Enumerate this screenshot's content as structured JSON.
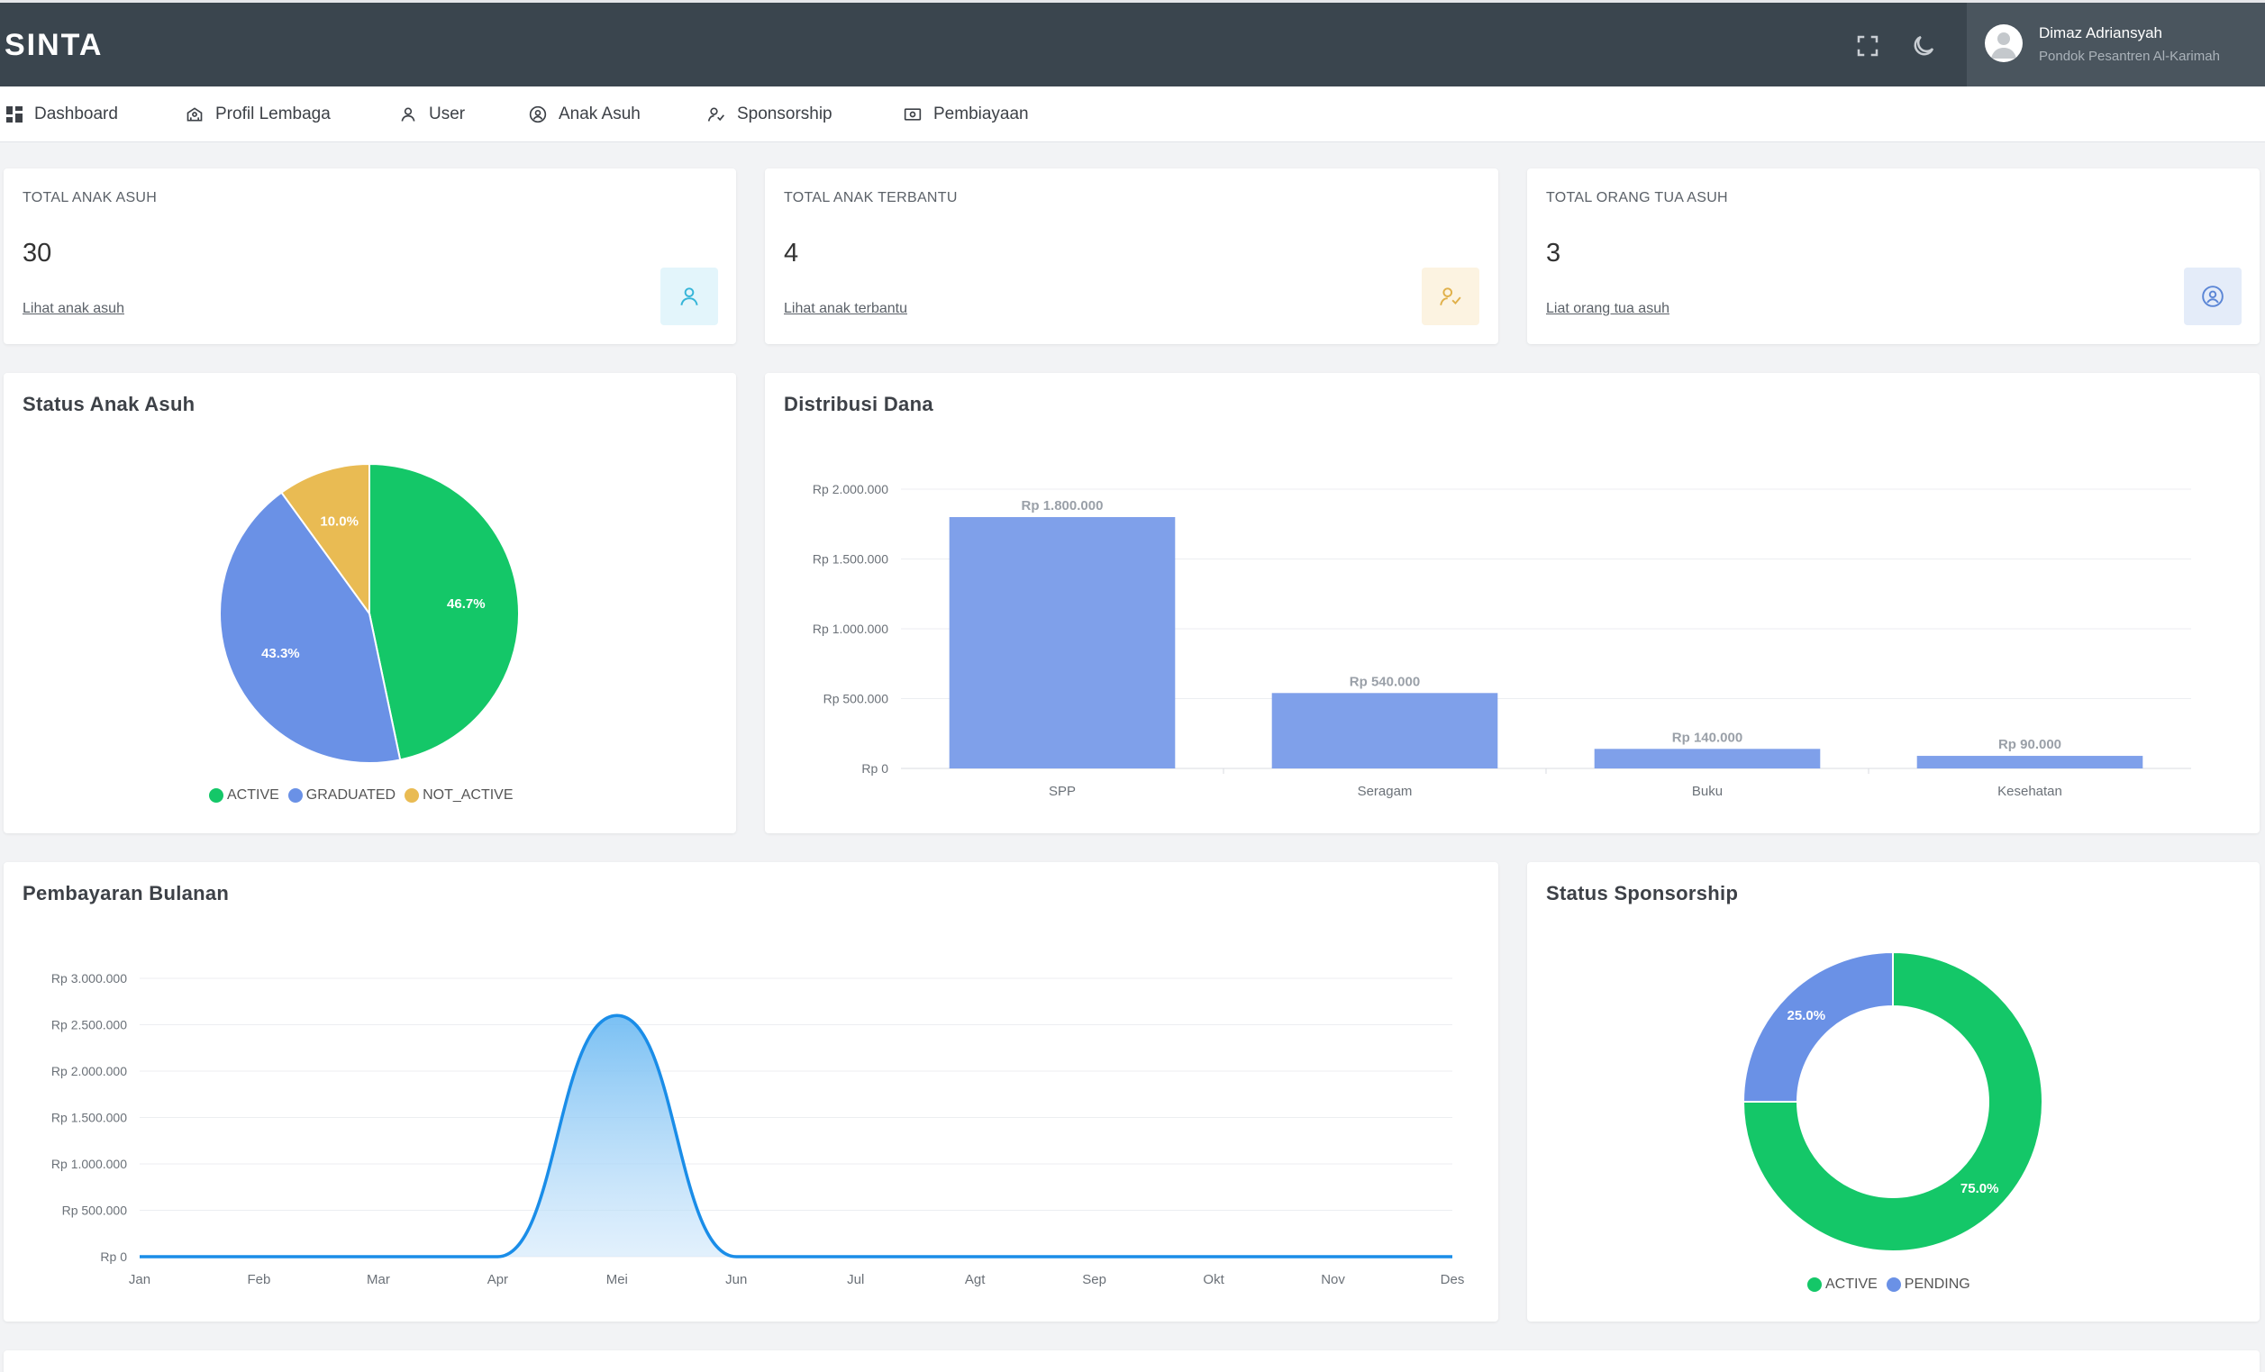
{
  "app": {
    "brand": "SINTA"
  },
  "topbar": {
    "fullscreen_icon": "fullscreen-icon",
    "theme_icon": "moon-icon"
  },
  "user": {
    "name": "Dimaz Adriansyah",
    "organization": "Pondok Pesantren Al-Karimah"
  },
  "nav": {
    "items": [
      {
        "label": "Dashboard",
        "icon": "dashboard-icon"
      },
      {
        "label": "Profil Lembaga",
        "icon": "building-icon"
      },
      {
        "label": "User",
        "icon": "user-icon"
      },
      {
        "label": "Anak Asuh",
        "icon": "user-circle-icon"
      },
      {
        "label": "Sponsorship",
        "icon": "user-check-icon"
      },
      {
        "label": "Pembiayaan",
        "icon": "money-icon"
      }
    ]
  },
  "stats": [
    {
      "label": "TOTAL ANAK ASUH",
      "value": "30",
      "link": "Lihat anak asuh",
      "icon": "user-icon",
      "color": "#36b5d8",
      "bg": "#e3f5fb"
    },
    {
      "label": "TOTAL ANAK TERBANTU",
      "value": "4",
      "link": "Lihat anak terbantu",
      "icon": "user-check-icon",
      "color": "#e0b04a",
      "bg": "#fcf3e1"
    },
    {
      "label": "TOTAL ORANG TUA ASUH",
      "value": "3",
      "link": "Liat orang tua asuh",
      "icon": "user-circle-icon",
      "color": "#5b86d6",
      "bg": "#e4ecf9"
    }
  ],
  "status_anak": {
    "title": "Status Anak Asuh",
    "chart_data": {
      "type": "pie",
      "slices": [
        {
          "name": "ACTIVE",
          "value": 46.7,
          "label": "46.7%",
          "color": "#14c768"
        },
        {
          "name": "GRADUATED",
          "value": 43.3,
          "label": "43.3%",
          "color": "#6a91e6"
        },
        {
          "name": "NOT_ACTIVE",
          "value": 10.0,
          "label": "10.0%",
          "color": "#e9bb53"
        }
      ]
    }
  },
  "distribusi": {
    "title": "Distribusi Dana",
    "chart_data": {
      "type": "bar",
      "categories": [
        "SPP",
        "Seragam",
        "Buku",
        "Kesehatan"
      ],
      "values": [
        1800000,
        540000,
        140000,
        90000
      ],
      "data_labels": [
        "Rp 1.800.000",
        "Rp 540.000",
        "Rp 140.000",
        "Rp 90.000"
      ],
      "ylim": [
        0,
        2000000
      ],
      "yticks": [
        0,
        500000,
        1000000,
        1500000,
        2000000
      ],
      "ytick_labels": [
        "Rp 0",
        "Rp 500.000",
        "Rp 1.000.000",
        "Rp 1.500.000",
        "Rp 2.000.000"
      ],
      "color": "#7fa0ea",
      "grid": true
    }
  },
  "pembayaran": {
    "title": "Pembayaran Bulanan",
    "chart_data": {
      "type": "area",
      "categories": [
        "Jan",
        "Feb",
        "Mar",
        "Apr",
        "Mei",
        "Jun",
        "Jul",
        "Agt",
        "Sep",
        "Okt",
        "Nov",
        "Des"
      ],
      "values": [
        0,
        0,
        0,
        0,
        2600000,
        0,
        0,
        0,
        0,
        0,
        0,
        0
      ],
      "ylim": [
        0,
        3000000
      ],
      "yticks": [
        0,
        500000,
        1000000,
        1500000,
        2000000,
        2500000,
        3000000
      ],
      "ytick_labels": [
        "Rp 0",
        "Rp 500.000",
        "Rp 1.000.000",
        "Rp 1.500.000",
        "Rp 2.000.000",
        "Rp 2.500.000",
        "Rp 3.000.000"
      ],
      "color": "#1a8de8",
      "grid": true
    }
  },
  "sponsorship": {
    "title": "Status Sponsorship",
    "chart_data": {
      "type": "pie",
      "donut": true,
      "slices": [
        {
          "name": "ACTIVE",
          "value": 75.0,
          "label": "75.0%",
          "color": "#14c768"
        },
        {
          "name": "PENDING",
          "value": 25.0,
          "label": "25.0%",
          "color": "#6a91e6"
        }
      ]
    }
  }
}
